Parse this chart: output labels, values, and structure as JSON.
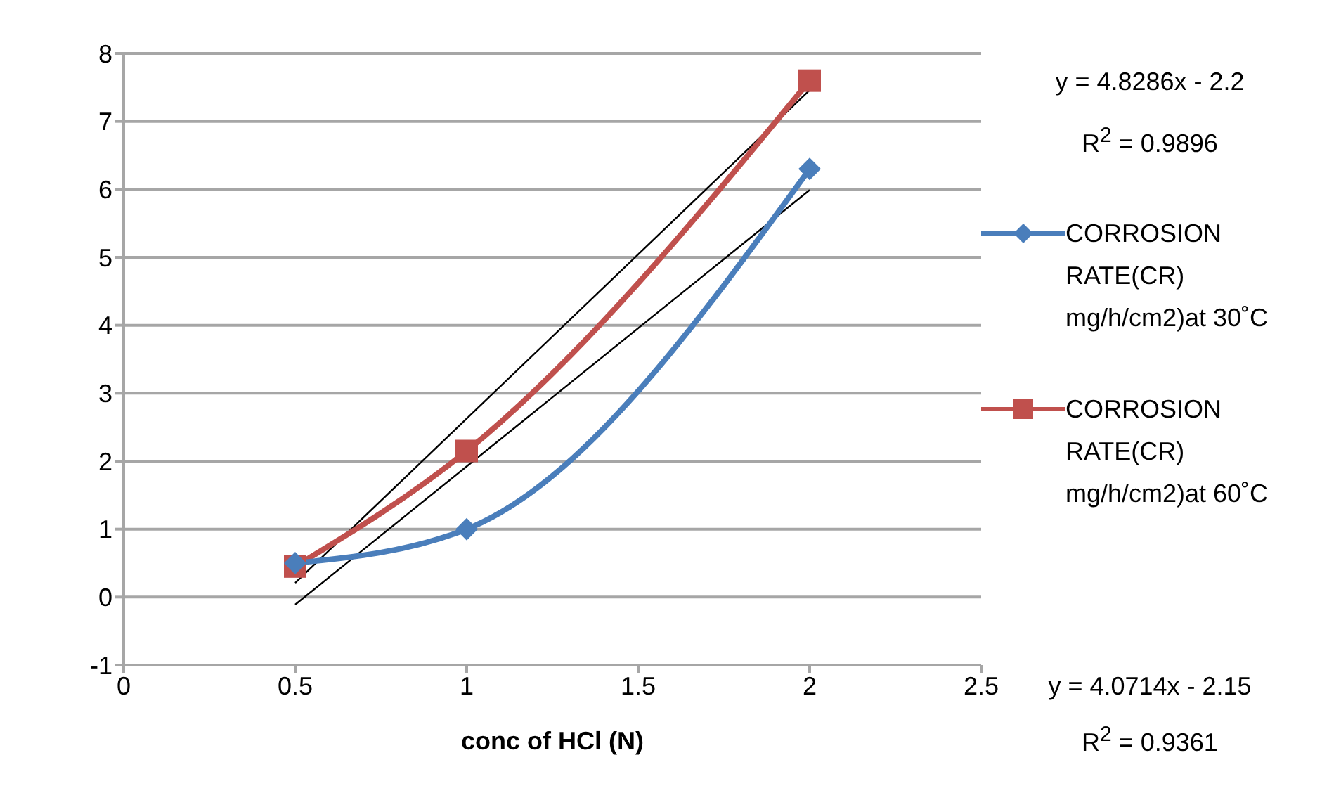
{
  "chart_data": {
    "type": "line",
    "xlabel": "conc of HCl (N)",
    "xlim": [
      0,
      2.5
    ],
    "xticks": [
      0,
      0.5,
      1,
      1.5,
      2,
      2.5
    ],
    "ylim": [
      -1,
      8
    ],
    "yticks": [
      -1,
      0,
      1,
      2,
      3,
      4,
      5,
      6,
      7,
      8
    ],
    "grid": "y",
    "legend": "right",
    "series": [
      {
        "name": "CORROSION RATE(CR) mg/h/cm2)at 30˚C",
        "color": "#4a7ebb",
        "x": [
          0.5,
          1,
          2
        ],
        "values": [
          0.5,
          1.0,
          6.3
        ],
        "marker": "diamond"
      },
      {
        "name": "CORROSION RATE(CR) mg/h/cm2)at 60˚C",
        "color": "#c0504d",
        "x": [
          0.5,
          1,
          2
        ],
        "values": [
          0.45,
          2.15,
          7.6
        ],
        "marker": "square"
      },
      {
        "color": "#000000",
        "x": [
          0.5,
          2
        ],
        "values": [
          0.21,
          7.46
        ],
        "marker": "none"
      },
      {
        "color": "#000000",
        "x": [
          0.5,
          2
        ],
        "values": [
          -0.11,
          5.99
        ],
        "marker": "none"
      }
    ],
    "annotations": [
      "y = 4.8286x - 2.2",
      "R$^{2}$ = 0.9896",
      "y = 4.0714x - 2.15",
      "R$^{2}$ = 0.9361"
    ]
  }
}
